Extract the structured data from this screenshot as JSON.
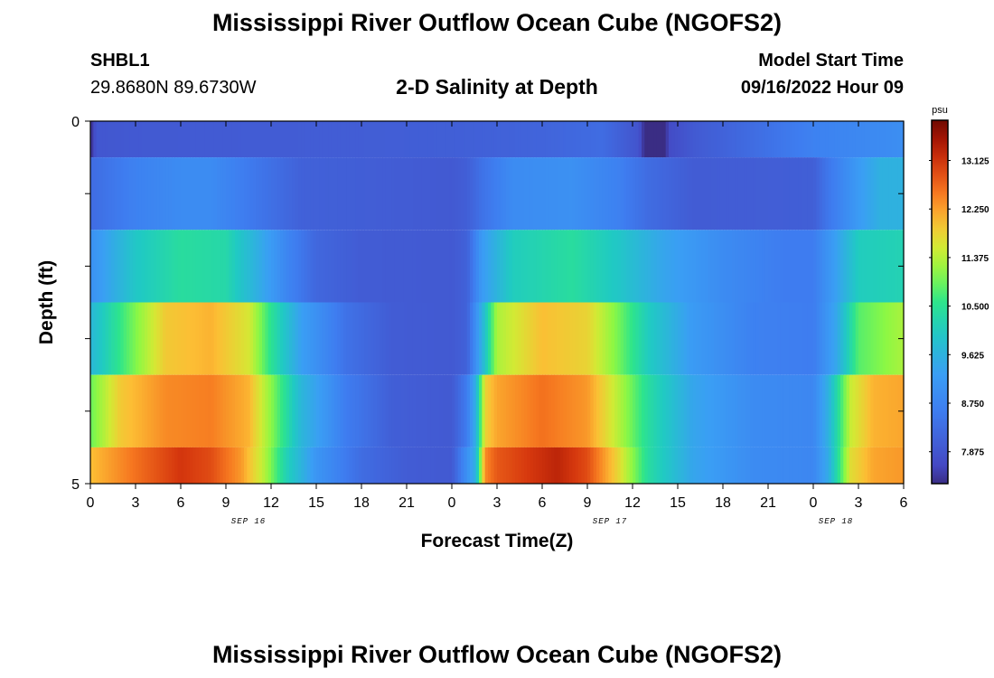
{
  "header": {
    "title": "Mississippi River Outflow Ocean Cube (NGOFS2)",
    "station_id": "SHBL1",
    "coordinates": "29.8680N  89.6730W",
    "subtitle": "2-D Salinity at Depth",
    "model_start_label": "Model Start Time",
    "model_start_value": "09/16/2022 Hour 09"
  },
  "footer": {
    "title_repeat": "Mississippi River Outflow Ocean Cube (NGOFS2)"
  },
  "chart_data": {
    "type": "heatmap",
    "title": "2-D Salinity at Depth",
    "xlabel": "Forecast Time(Z)",
    "ylabel": "Depth (ft)",
    "x_hours_from_start": [
      0,
      54
    ],
    "x_tick_labels": [
      "0",
      "3",
      "6",
      "9",
      "12",
      "15",
      "18",
      "21",
      "0",
      "3",
      "6",
      "9",
      "12",
      "15",
      "18",
      "21",
      "0",
      "3",
      "6"
    ],
    "date_labels": [
      {
        "label": "SEP 16",
        "at_tick": 3.5
      },
      {
        "label": "SEP 17",
        "at_tick": 11.5
      },
      {
        "label": "SEP 18",
        "at_tick": 16.5
      }
    ],
    "y_tick_labels": [
      "0",
      "",
      "",
      "",
      "",
      "5"
    ],
    "ylim": [
      0,
      5
    ],
    "colorbar": {
      "unit": "psu",
      "range": [
        7.3,
        13.85
      ],
      "tick_labels": [
        "7.875",
        "8.750",
        "9.625",
        "10.500",
        "11.375",
        "12.250",
        "13.125"
      ],
      "tick_values": [
        7.875,
        8.75,
        9.625,
        10.5,
        11.375,
        12.25,
        13.125
      ]
    },
    "layers": [
      {
        "depth_band": "0-0.5",
        "keyframes": [
          [
            0,
            7.3
          ],
          [
            0.4,
            7.9
          ],
          [
            3,
            7.95
          ],
          [
            12,
            8.0
          ],
          [
            24,
            8.05
          ],
          [
            30,
            8.15
          ],
          [
            34,
            8.3
          ],
          [
            36.4,
            7.85
          ],
          [
            36.8,
            7.3
          ],
          [
            38.1,
            7.3
          ],
          [
            38.5,
            7.7
          ],
          [
            40,
            7.95
          ],
          [
            44,
            8.3
          ],
          [
            48,
            8.7
          ],
          [
            54,
            8.95
          ]
        ]
      },
      {
        "depth_band": "0.5-1.5",
        "keyframes": [
          [
            0,
            8.3
          ],
          [
            3,
            8.7
          ],
          [
            6,
            8.9
          ],
          [
            8,
            8.9
          ],
          [
            11,
            8.5
          ],
          [
            14,
            8.1
          ],
          [
            24,
            7.95
          ],
          [
            25,
            8.05
          ],
          [
            26,
            8.4
          ],
          [
            28,
            8.9
          ],
          [
            32,
            9.0
          ],
          [
            35,
            8.7
          ],
          [
            37,
            8.3
          ],
          [
            40,
            8.0
          ],
          [
            48,
            8.05
          ],
          [
            49,
            8.5
          ],
          [
            51,
            9.2
          ],
          [
            52.5,
            9.6
          ],
          [
            54,
            9.6
          ]
        ]
      },
      {
        "depth_band": "1.5-2.5",
        "keyframes": [
          [
            0,
            9.0
          ],
          [
            3,
            10.0
          ],
          [
            6,
            10.4
          ],
          [
            9,
            10.3
          ],
          [
            11,
            9.6
          ],
          [
            13,
            8.8
          ],
          [
            15,
            8.2
          ],
          [
            18,
            8.0
          ],
          [
            24,
            7.95
          ],
          [
            25,
            8.1
          ],
          [
            26,
            9.2
          ],
          [
            28,
            10.1
          ],
          [
            32,
            10.4
          ],
          [
            35,
            10.0
          ],
          [
            38,
            9.4
          ],
          [
            42,
            8.9
          ],
          [
            46,
            8.6
          ],
          [
            48,
            8.6
          ],
          [
            49.5,
            9.3
          ],
          [
            51,
            10.1
          ],
          [
            54,
            10.2
          ]
        ]
      },
      {
        "depth_band": "2.5-3.5",
        "keyframes": [
          [
            0,
            9.7
          ],
          [
            2,
            10.6
          ],
          [
            5,
            11.9
          ],
          [
            8,
            12.1
          ],
          [
            10.5,
            11.6
          ],
          [
            12,
            10.5
          ],
          [
            14,
            9.3
          ],
          [
            17,
            8.4
          ],
          [
            20,
            8.0
          ],
          [
            24,
            7.95
          ],
          [
            25,
            8.1
          ],
          [
            26,
            9.6
          ],
          [
            27,
            11.3
          ],
          [
            30,
            12.0
          ],
          [
            33,
            11.8
          ],
          [
            35,
            11.0
          ],
          [
            37,
            10.1
          ],
          [
            40,
            9.2
          ],
          [
            44,
            8.7
          ],
          [
            48,
            8.6
          ],
          [
            49.5,
            9.4
          ],
          [
            51,
            10.8
          ],
          [
            54,
            11.3
          ]
        ]
      },
      {
        "depth_band": "3.5-4.5",
        "keyframes": [
          [
            0,
            10.9
          ],
          [
            2,
            11.9
          ],
          [
            5,
            12.4
          ],
          [
            8,
            12.5
          ],
          [
            10.5,
            12.1
          ],
          [
            12,
            11.1
          ],
          [
            14,
            9.7
          ],
          [
            17,
            8.6
          ],
          [
            20,
            8.05
          ],
          [
            24,
            7.95
          ],
          [
            25,
            8.6
          ],
          [
            25.6,
            9.6
          ],
          [
            26.2,
            11.8
          ],
          [
            27,
            12.2
          ],
          [
            30,
            12.6
          ],
          [
            33,
            12.3
          ],
          [
            35,
            11.4
          ],
          [
            37,
            10.4
          ],
          [
            40,
            9.4
          ],
          [
            44,
            8.9
          ],
          [
            48,
            8.8
          ],
          [
            49,
            9.6
          ],
          [
            50.5,
            11.5
          ],
          [
            52,
            12.1
          ],
          [
            54,
            12.2
          ]
        ]
      },
      {
        "depth_band": "4.5-5",
        "keyframes": [
          [
            0,
            12.0
          ],
          [
            3,
            12.6
          ],
          [
            6,
            13.1
          ],
          [
            8,
            12.9
          ],
          [
            10,
            12.3
          ],
          [
            11.5,
            11.4
          ],
          [
            13,
            10.2
          ],
          [
            15,
            9.1
          ],
          [
            18,
            8.3
          ],
          [
            21,
            8.0
          ],
          [
            24,
            7.95
          ],
          [
            25,
            9.0
          ],
          [
            25.6,
            9.6
          ],
          [
            26.2,
            12.4
          ],
          [
            27,
            12.8
          ],
          [
            31,
            13.3
          ],
          [
            33,
            12.9
          ],
          [
            35,
            11.8
          ],
          [
            37,
            10.4
          ],
          [
            40,
            9.4
          ],
          [
            44,
            8.9
          ],
          [
            48,
            8.8
          ],
          [
            49,
            9.5
          ],
          [
            50.5,
            11.7
          ],
          [
            52,
            12.2
          ],
          [
            54,
            12.3
          ]
        ]
      }
    ]
  }
}
